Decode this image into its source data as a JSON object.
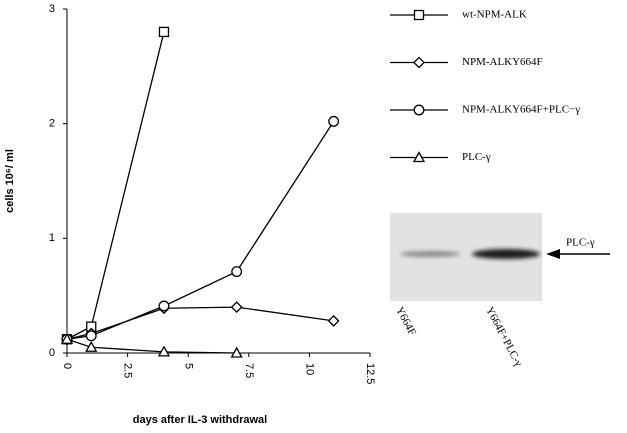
{
  "chart_data": {
    "type": "line",
    "x_label": "days after IL-3 withdrawal",
    "y_label": "cells 10⁶/ ml",
    "x": [
      0,
      1,
      4,
      7,
      11
    ],
    "series": [
      {
        "name": "wt-NPM-ALK",
        "color": "#000000",
        "marker": "square",
        "values": [
          0.12,
          0.23,
          2.8,
          null,
          null
        ]
      },
      {
        "name": "NPM-ALKY664F",
        "color": "#000000",
        "marker": "diamond",
        "values": [
          0.12,
          0.17,
          0.39,
          0.4,
          0.28
        ]
      },
      {
        "name": "NPM-ALKY664F+PLC−γ",
        "color": "#000000",
        "marker": "circle",
        "values": [
          0.12,
          0.15,
          0.41,
          0.71,
          2.02
        ]
      },
      {
        "name": "PLC-γ",
        "color": "#000000",
        "marker": "triangle",
        "values": [
          0.12,
          0.05,
          0.01,
          0,
          null
        ]
      }
    ],
    "xlim": [
      0,
      12.5
    ],
    "xticks": [
      0,
      2.5,
      5,
      7.5,
      10,
      12.5
    ],
    "ylim": [
      0,
      3
    ],
    "yticks": [
      0,
      1,
      2,
      3
    ],
    "grid": false,
    "legend": "right"
  },
  "blot": {
    "band_label": "PLC-γ",
    "lanes": [
      "Y664F",
      "Y664F+PLC-γ"
    ]
  }
}
